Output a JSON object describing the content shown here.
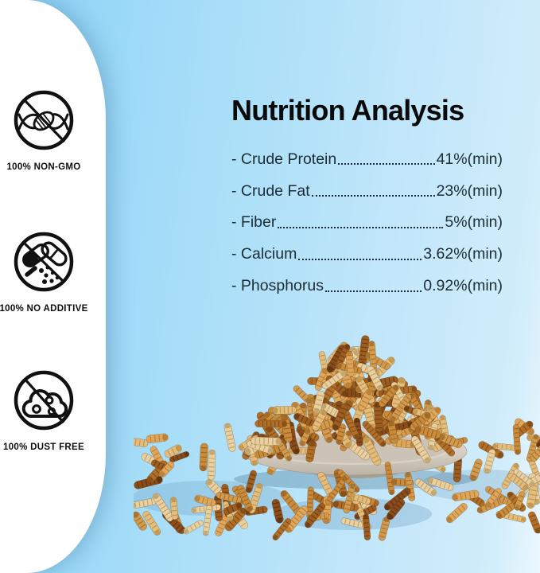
{
  "badges": {
    "items": [
      {
        "icon": "no-gmo-icon",
        "label": "100% NON-GMO"
      },
      {
        "icon": "no-additive-icon",
        "label": "100% NO ADDITIVE"
      },
      {
        "icon": "dust-free-icon",
        "label": "100% DUST FREE"
      }
    ]
  },
  "nutrition": {
    "title": "Nutrition Analysis",
    "rows": [
      {
        "label": "- Crude Protein",
        "value": "41%(min)"
      },
      {
        "label": "- Crude Fat",
        "value": "23%(min)"
      },
      {
        "label": "- Fiber",
        "value": "5%(min)"
      },
      {
        "label": "- Calcium",
        "value": "3.62%(min)"
      },
      {
        "label": "- Phosphorus",
        "value": "0.92%(min)"
      }
    ]
  },
  "colors": {
    "background_left": "#8bd2f6",
    "background_right": "#ecf8fe",
    "panel": "#ffffff",
    "title_text": "#0a0a0a",
    "body_text": "#1c2c35",
    "icon_stroke": "#111111",
    "plate": "#d9d2c6",
    "larvae_orange": "#c98c3a"
  }
}
